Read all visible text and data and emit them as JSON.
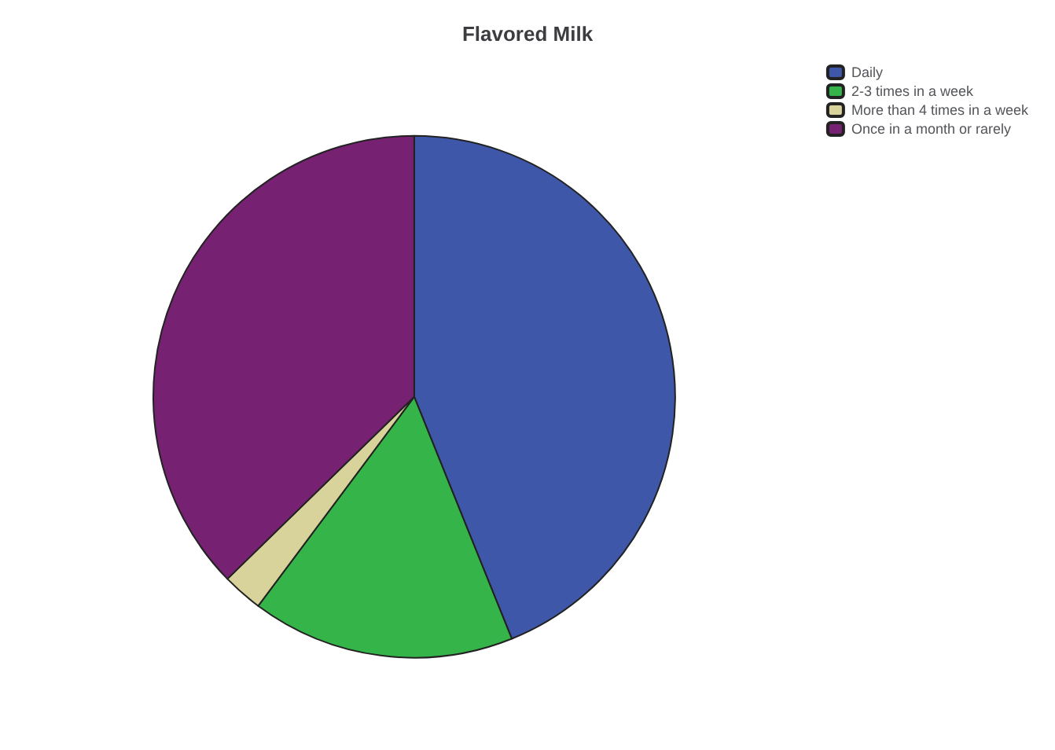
{
  "chart_data": {
    "type": "pie",
    "title": "Flavored Milk",
    "categories": [
      "Daily",
      "2-3 times in a week",
      "More than 4 times in a week",
      "Once in a month or rarely"
    ],
    "values": [
      43.9,
      16.3,
      2.5,
      37.3
    ],
    "colors": [
      "#3f57a8",
      "#35b44a",
      "#d8d39a",
      "#772173"
    ],
    "legend": "top right"
  }
}
